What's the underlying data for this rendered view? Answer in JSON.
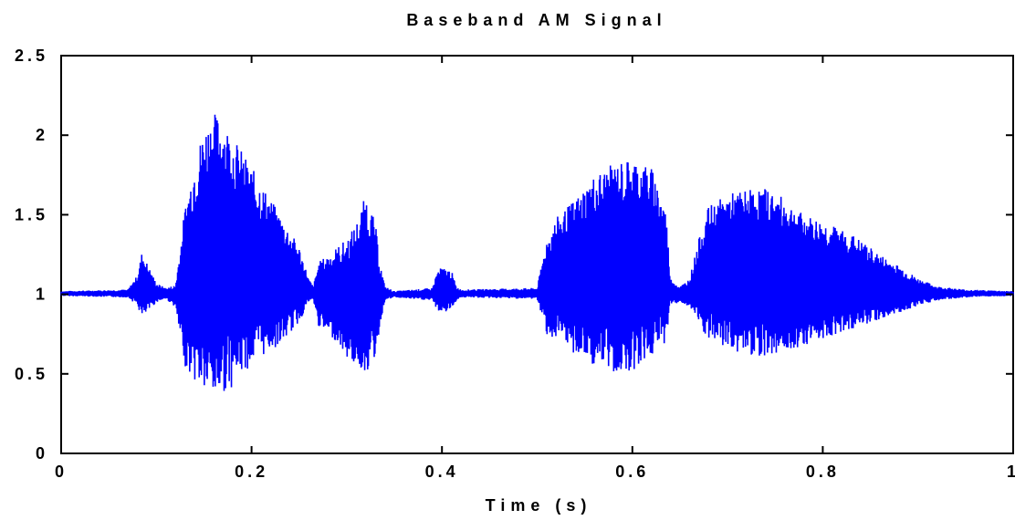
{
  "chart_data": {
    "type": "line",
    "title": "Baseband AM Signal",
    "xlabel": "Time (s)",
    "ylabel": "",
    "xlim": [
      0,
      1
    ],
    "ylim": [
      0,
      2.5
    ],
    "x_ticks": [
      0,
      0.2,
      0.4,
      0.6,
      0.8,
      1
    ],
    "x_tick_labels": [
      "0",
      "0.2",
      "0.4",
      "0.6",
      "0.8",
      "1"
    ],
    "y_ticks": [
      0,
      0.5,
      1,
      1.5,
      2,
      2.5
    ],
    "y_tick_labels": [
      "0",
      "0.5",
      "1",
      "1.5",
      "2",
      "2.5"
    ],
    "grid": false,
    "line_color": "#0000ff",
    "series": [
      {
        "envelope": {
          "time": [
            0.0,
            0.07,
            0.08,
            0.085,
            0.09,
            0.1,
            0.11,
            0.12,
            0.125,
            0.13,
            0.14,
            0.15,
            0.16,
            0.17,
            0.18,
            0.19,
            0.2,
            0.21,
            0.22,
            0.23,
            0.24,
            0.25,
            0.26,
            0.265,
            0.27,
            0.28,
            0.29,
            0.3,
            0.31,
            0.32,
            0.33,
            0.335,
            0.34,
            0.35,
            0.39,
            0.395,
            0.4,
            0.41,
            0.415,
            0.42,
            0.5,
            0.505,
            0.51,
            0.52,
            0.54,
            0.56,
            0.58,
            0.6,
            0.62,
            0.635,
            0.64,
            0.65,
            0.66,
            0.67,
            0.68,
            0.7,
            0.72,
            0.74,
            0.76,
            0.78,
            0.8,
            0.83,
            0.86,
            0.88,
            0.9,
            0.92,
            0.95,
            1.0
          ],
          "max": [
            1.02,
            1.03,
            1.12,
            1.27,
            1.2,
            1.07,
            1.04,
            1.06,
            1.3,
            1.55,
            1.85,
            2.05,
            2.15,
            2.1,
            2.0,
            1.9,
            1.8,
            1.7,
            1.6,
            1.5,
            1.4,
            1.3,
            1.1,
            1.05,
            1.2,
            1.25,
            1.3,
            1.35,
            1.45,
            1.63,
            1.45,
            1.2,
            1.05,
            1.02,
            1.04,
            1.15,
            1.17,
            1.15,
            1.05,
            1.03,
            1.04,
            1.2,
            1.35,
            1.48,
            1.6,
            1.75,
            1.82,
            1.86,
            1.8,
            1.55,
            1.1,
            1.05,
            1.1,
            1.35,
            1.55,
            1.63,
            1.66,
            1.67,
            1.6,
            1.5,
            1.46,
            1.38,
            1.25,
            1.18,
            1.1,
            1.05,
            1.03,
            1.02
          ],
          "min": [
            0.99,
            0.98,
            0.93,
            0.84,
            0.88,
            0.95,
            0.97,
            0.92,
            0.72,
            0.55,
            0.45,
            0.38,
            0.33,
            0.38,
            0.42,
            0.5,
            0.55,
            0.6,
            0.65,
            0.68,
            0.75,
            0.82,
            0.95,
            0.96,
            0.8,
            0.75,
            0.7,
            0.6,
            0.55,
            0.5,
            0.6,
            0.8,
            0.96,
            0.98,
            0.96,
            0.9,
            0.88,
            0.9,
            0.96,
            0.98,
            0.97,
            0.85,
            0.75,
            0.7,
            0.62,
            0.55,
            0.5,
            0.52,
            0.6,
            0.7,
            0.93,
            0.95,
            0.92,
            0.8,
            0.7,
            0.65,
            0.62,
            0.61,
            0.64,
            0.68,
            0.72,
            0.78,
            0.84,
            0.88,
            0.93,
            0.96,
            0.98,
            0.99
          ]
        }
      }
    ]
  }
}
